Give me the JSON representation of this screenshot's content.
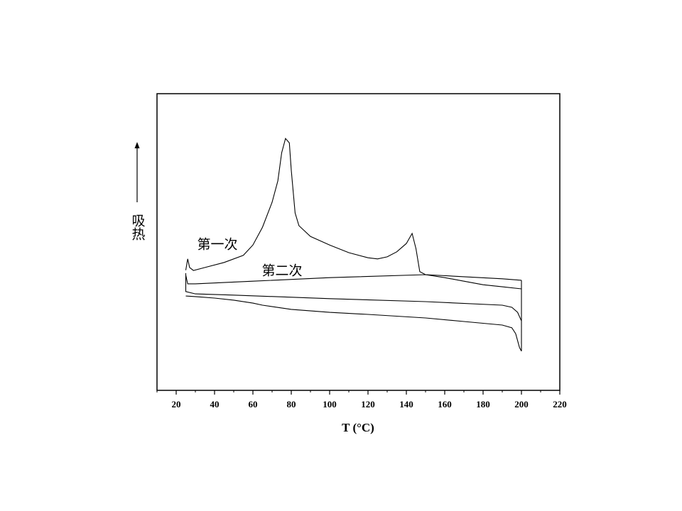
{
  "chart_data": {
    "type": "line",
    "xlabel": "T (°C)",
    "ylabel": "吸热",
    "xlim": [
      10,
      220
    ],
    "xticks": [
      20,
      40,
      60,
      80,
      100,
      120,
      140,
      160,
      180,
      200,
      220
    ],
    "xminorticks": [
      10,
      30,
      50,
      70,
      90,
      110,
      130,
      150,
      170,
      190,
      210
    ],
    "ylim": [
      0,
      100
    ],
    "series": [
      {
        "name": "第一次",
        "color": "#000000",
        "x": [
          25,
          26,
          27,
          29,
          35,
          45,
          55,
          60,
          65,
          70,
          73,
          75,
          77,
          79,
          80,
          82,
          84,
          90,
          100,
          110,
          120,
          125,
          130,
          135,
          140,
          143,
          145,
          147,
          150,
          160,
          170,
          180,
          190,
          200
        ],
        "values": [
          40.5,
          44.3,
          41.4,
          40.4,
          41.4,
          43.1,
          45.5,
          49.0,
          55.0,
          63.4,
          70.6,
          80.1,
          84.9,
          83.4,
          74.2,
          59.8,
          55.5,
          51.9,
          49.0,
          46.4,
          44.7,
          44.3,
          45.0,
          46.7,
          49.5,
          52.9,
          47.8,
          40.0,
          39.0,
          38.0,
          36.8,
          35.6,
          34.9,
          34.2
        ]
      },
      {
        "name": "第二次",
        "color": "#000000",
        "x": [
          25,
          26,
          30,
          60,
          100,
          150,
          170,
          190,
          200
        ],
        "values": [
          38.8,
          35.9,
          35.9,
          36.8,
          38.0,
          39.0,
          38.3,
          37.6,
          37.1
        ]
      },
      {
        "color": "#000000",
        "x": [
          200,
          200,
          199,
          197,
          195,
          190,
          170,
          150,
          120,
          100,
          80,
          65,
          60,
          50,
          40,
          30,
          25
        ],
        "values": [
          37.1,
          13.2,
          14.4,
          19.1,
          21.1,
          22.0,
          23.2,
          24.4,
          25.6,
          26.3,
          27.3,
          28.7,
          29.4,
          30.4,
          31.1,
          31.6,
          31.8
        ]
      },
      {
        "color": "#000000",
        "x": [
          200,
          198,
          195,
          190,
          150,
          100,
          50,
          30,
          25,
          25
        ],
        "values": [
          23.4,
          26.3,
          28.0,
          28.7,
          29.9,
          30.9,
          32.1,
          32.5,
          33.3,
          39.5
        ]
      }
    ]
  }
}
